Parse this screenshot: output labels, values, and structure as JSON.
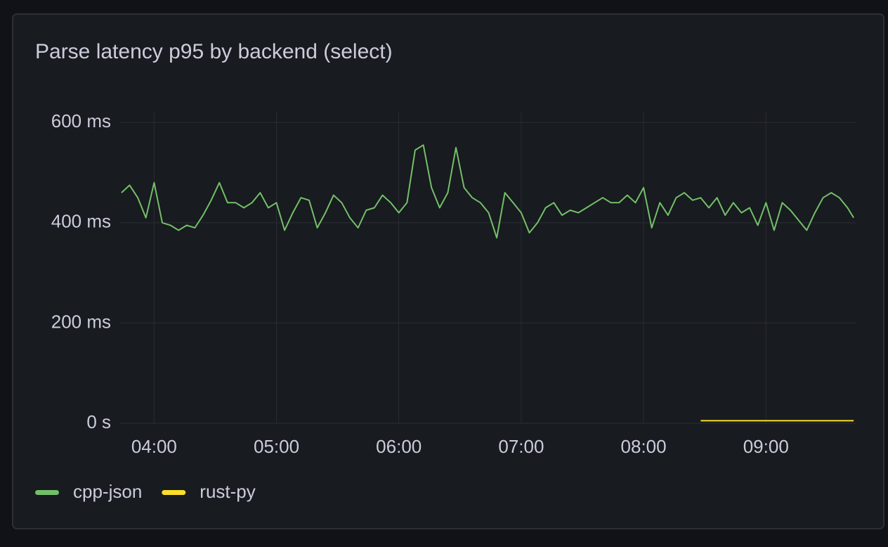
{
  "chart_data": {
    "type": "line",
    "title": "Parse latency p95 by backend (select)",
    "xlim": [
      "03:43",
      "09:44"
    ],
    "xticks": [
      "04:00",
      "05:00",
      "06:00",
      "07:00",
      "08:00",
      "09:00"
    ],
    "ylim": [
      0,
      620
    ],
    "yticks": [
      {
        "value": 0,
        "label": "0 s"
      },
      {
        "value": 200,
        "label": "200 ms"
      },
      {
        "value": 400,
        "label": "400 ms"
      },
      {
        "value": 600,
        "label": "600 ms"
      }
    ],
    "grid": true,
    "series": [
      {
        "name": "cpp-json",
        "color": "#73bf69",
        "x": [
          "03:44",
          "03:48",
          "03:52",
          "03:56",
          "04:00",
          "04:04",
          "04:08",
          "04:12",
          "04:16",
          "04:20",
          "04:24",
          "04:28",
          "04:32",
          "04:36",
          "04:40",
          "04:44",
          "04:48",
          "04:52",
          "04:56",
          "05:00",
          "05:04",
          "05:08",
          "05:12",
          "05:16",
          "05:20",
          "05:24",
          "05:28",
          "05:32",
          "05:36",
          "05:40",
          "05:44",
          "05:48",
          "05:52",
          "05:56",
          "06:00",
          "06:04",
          "06:08",
          "06:12",
          "06:16",
          "06:20",
          "06:24",
          "06:28",
          "06:32",
          "06:36",
          "06:40",
          "06:44",
          "06:48",
          "06:52",
          "06:56",
          "07:00",
          "07:04",
          "07:08",
          "07:12",
          "07:16",
          "07:20",
          "07:24",
          "07:28",
          "07:32",
          "07:36",
          "07:40",
          "07:44",
          "07:48",
          "07:52",
          "07:56",
          "08:00",
          "08:04",
          "08:08",
          "08:12",
          "08:16",
          "08:20",
          "08:24",
          "08:28",
          "08:32",
          "08:36",
          "08:40",
          "08:44",
          "08:48",
          "08:52",
          "08:56",
          "09:00",
          "09:04",
          "09:08",
          "09:12",
          "09:16",
          "09:20",
          "09:24",
          "09:28",
          "09:32",
          "09:36",
          "09:40",
          "09:43"
        ],
        "values": [
          460,
          475,
          450,
          410,
          480,
          400,
          395,
          385,
          395,
          390,
          415,
          445,
          480,
          440,
          440,
          430,
          440,
          460,
          430,
          440,
          385,
          420,
          450,
          445,
          390,
          420,
          455,
          440,
          410,
          390,
          425,
          430,
          455,
          440,
          420,
          440,
          545,
          555,
          470,
          430,
          460,
          550,
          470,
          450,
          440,
          420,
          370,
          460,
          440,
          420,
          380,
          400,
          430,
          440,
          415,
          425,
          420,
          430,
          440,
          450,
          440,
          440,
          455,
          440,
          470,
          390,
          440,
          415,
          450,
          460,
          445,
          450,
          430,
          450,
          415,
          440,
          420,
          430,
          395,
          440,
          385,
          440,
          425,
          405,
          385,
          420,
          450,
          460,
          450,
          430,
          410
        ]
      },
      {
        "name": "rust-py",
        "color": "#fade2a",
        "x": [
          "08:28",
          "09:43"
        ],
        "values": [
          5,
          5
        ]
      }
    ]
  }
}
